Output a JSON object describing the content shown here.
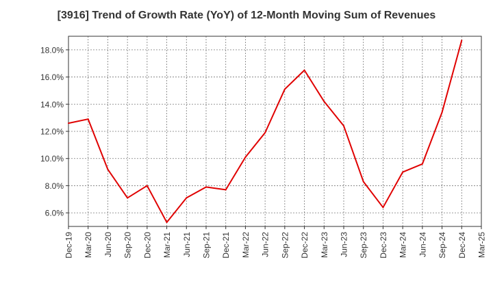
{
  "chart_data": {
    "type": "line",
    "title": "[3916]  Trend of Growth Rate (YoY) of 12-Month Moving Sum of Revenues",
    "xlabel": "",
    "ylabel": "",
    "x_ticks": [
      "Dec-19",
      "Mar-20",
      "Jun-20",
      "Sep-20",
      "Dec-20",
      "Mar-21",
      "Jun-21",
      "Sep-21",
      "Dec-21",
      "Mar-22",
      "Jun-22",
      "Sep-22",
      "Dec-22",
      "Mar-23",
      "Jun-23",
      "Sep-23",
      "Dec-23",
      "Mar-24",
      "Jun-24",
      "Sep-24",
      "Dec-24",
      "Mar-25"
    ],
    "y_ticks": [
      "6.0%",
      "8.0%",
      "10.0%",
      "12.0%",
      "14.0%",
      "16.0%",
      "18.0%"
    ],
    "ylim": [
      5.0,
      19.0
    ],
    "grid": true,
    "series": [
      {
        "color": "#e00000",
        "x": [
          "Dec-19",
          "Mar-20",
          "Jun-20",
          "Sep-20",
          "Dec-20",
          "Mar-21",
          "Jun-21",
          "Sep-21",
          "Dec-21",
          "Mar-22",
          "Jun-22",
          "Sep-22",
          "Dec-22",
          "Mar-23",
          "Jun-23",
          "Sep-23",
          "Dec-23",
          "Mar-24",
          "Jun-24",
          "Sep-24",
          "Dec-24"
        ],
        "values": [
          12.6,
          12.9,
          9.2,
          7.1,
          8.0,
          5.3,
          7.1,
          7.9,
          7.7,
          10.1,
          11.9,
          15.1,
          16.5,
          14.2,
          12.4,
          8.3,
          6.4,
          9.0,
          9.6,
          13.4,
          18.7
        ]
      }
    ]
  }
}
